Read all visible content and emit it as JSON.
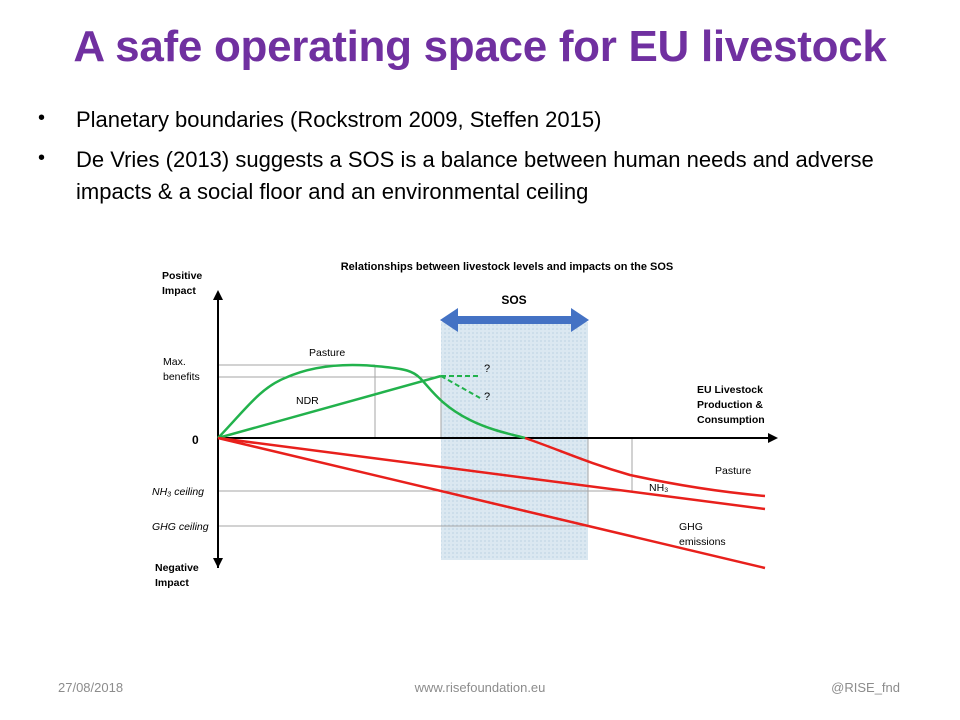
{
  "slide": {
    "title": "A safe operating space for EU livestock",
    "bullets": [
      "Planetary boundaries (Rockstrom 2009, Steffen 2015)",
      "De Vries (2013) suggests a SOS is a balance between human needs and adverse impacts & a social floor and an environmental ceiling"
    ]
  },
  "diagram": {
    "title": "Relationships between livestock levels and impacts on the SOS",
    "y_axis_top_label": [
      "Positive",
      "Impact"
    ],
    "y_axis_bottom_label": [
      "Negative",
      "Impact"
    ],
    "x_axis_label": [
      "EU Livestock",
      "Production &",
      "Consumption"
    ],
    "origin_label": "0",
    "max_benefits_label": [
      "Max.",
      "benefits"
    ],
    "nh3_ceiling_label": "NH₃ ceiling",
    "ghg_ceiling_label": "GHG ceiling",
    "sos_label": "SOS",
    "pasture_top_label": "Pasture",
    "ndr_label": "NDR",
    "question_1": "?",
    "question_2": "?",
    "pasture_bottom_label": "Pasture",
    "nh3_label": "NH₃",
    "ghg_label": [
      "GHG",
      "emissions"
    ],
    "colors": {
      "benefit_curves": "#22b24c",
      "impact_lines": "#e8201c",
      "sos_arrow": "#4472c4",
      "sos_band": "#dbe8f1"
    }
  },
  "footer": {
    "date": "27/08/2018",
    "website": "www.risefoundation.eu",
    "handle": "@RISE_fnd"
  }
}
